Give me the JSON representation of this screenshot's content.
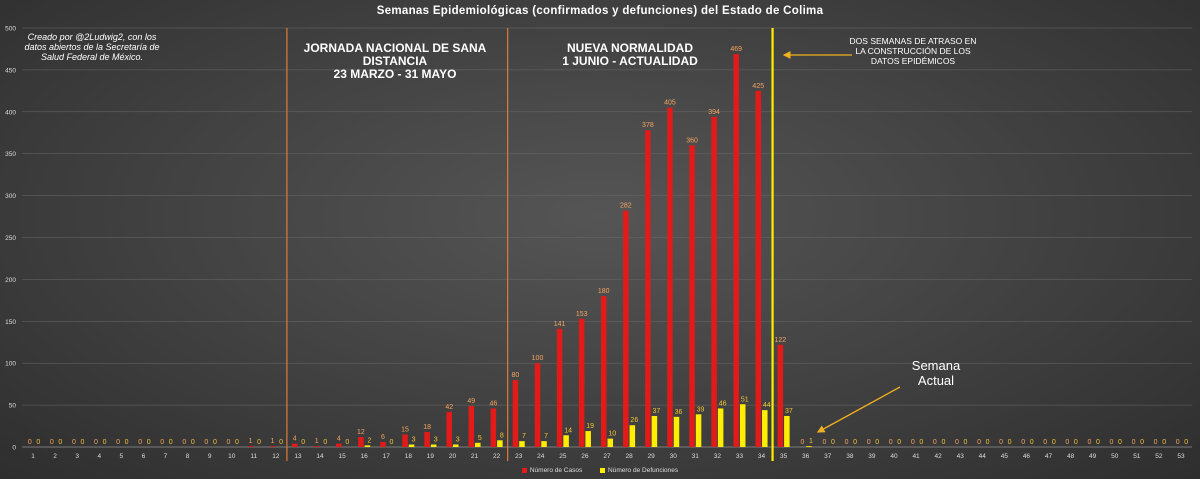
{
  "title": "Semanas Epidemiológicas (confirmados y defunciones) del Estado de Colima",
  "annotations": {
    "credit": "Creado por @2Ludwig2, con los datos abiertos de la Secretaría de Salud Federal de México.",
    "phase1": [
      "JORNADA NACIONAL DE SANA",
      "DISTANCIA",
      "23 MARZO - 31 MAYO"
    ],
    "phase2": [
      "NUEVA NORMALIDAD",
      "1 JUNIO - ACTUALIDAD"
    ],
    "delay_note": "DOS SEMANAS DE ATRASO EN LA CONSTRUCCIÓN DE LOS DATOS EPIDÉMICOS",
    "current_week": [
      "Semana",
      "Actual"
    ]
  },
  "colors": {
    "cases": "#e31a1a",
    "deaths": "#ffee00",
    "phase_line": "#e07b39",
    "current_line": "#ffee00",
    "case_label": "#f4a460",
    "death_label": "#f4c430",
    "arrow": "#f0b020"
  },
  "chart_data": {
    "type": "bar",
    "title": "Semanas Epidemiológicas (confirmados y defunciones) del Estado de Colima",
    "categories": [
      "1",
      "2",
      "3",
      "4",
      "5",
      "6",
      "7",
      "8",
      "9",
      "10",
      "11",
      "12",
      "13",
      "14",
      "15",
      "16",
      "17",
      "18",
      "19",
      "20",
      "21",
      "22",
      "23",
      "24",
      "25",
      "26",
      "27",
      "28",
      "29",
      "30",
      "31",
      "32",
      "33",
      "34",
      "35",
      "36",
      "37",
      "38",
      "39",
      "40",
      "41",
      "42",
      "43",
      "44",
      "45",
      "46",
      "47",
      "48",
      "49",
      "50",
      "51",
      "52",
      "53"
    ],
    "series": [
      {
        "name": "Número de Casos",
        "values": [
          0,
          0,
          0,
          0,
          0,
          0,
          0,
          0,
          0,
          0,
          1,
          1,
          4,
          1,
          4,
          12,
          6,
          15,
          18,
          42,
          49,
          46,
          80,
          100,
          141,
          153,
          180,
          282,
          378,
          405,
          360,
          394,
          469,
          425,
          122,
          0,
          0,
          0,
          0,
          0,
          0,
          0,
          0,
          0,
          0,
          0,
          0,
          0,
          0,
          0,
          0,
          0,
          0
        ]
      },
      {
        "name": "Número de Defunciones",
        "values": [
          0,
          0,
          0,
          0,
          0,
          0,
          0,
          0,
          0,
          0,
          0,
          0,
          0,
          0,
          0,
          2,
          0,
          3,
          3,
          3,
          5,
          8,
          7,
          7,
          14,
          19,
          10,
          26,
          37,
          36,
          39,
          46,
          51,
          44,
          37,
          1,
          0,
          0,
          0,
          0,
          0,
          0,
          0,
          0,
          0,
          0,
          0,
          0,
          0,
          0,
          0,
          0,
          0
        ]
      }
    ],
    "ylim": [
      0,
      500
    ],
    "yticks": [
      0,
      50,
      100,
      150,
      200,
      250,
      300,
      350,
      400,
      450,
      500
    ],
    "phase_lines_after_week": [
      12,
      22
    ],
    "current_week_line_after": 34,
    "grid": true,
    "legend_position": "bottom"
  }
}
